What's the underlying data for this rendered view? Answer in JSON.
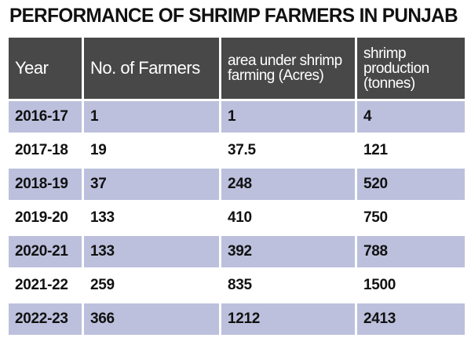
{
  "chart_data": {
    "type": "table",
    "title": "PERFORMANCE OF SHRIMP FARMERS IN PUNJAB",
    "columns": [
      "Year",
      "No. of Farmers",
      "area under shrimp farming (Acres)",
      "shrimp production (tonnes)"
    ],
    "rows": [
      [
        "2016-17",
        "1",
        "1",
        "4"
      ],
      [
        "2017-18",
        "19",
        "37.5",
        "121"
      ],
      [
        "2018-19",
        "37",
        "248",
        "520"
      ],
      [
        "2019-20",
        "133",
        "410",
        "750"
      ],
      [
        "2020-21",
        "133",
        "392",
        "788"
      ],
      [
        "2021-22",
        "259",
        "835",
        "1500"
      ],
      [
        "2022-23",
        "366",
        "1212",
        "2413"
      ]
    ]
  },
  "colors": {
    "header_bg": "#484848",
    "row_shade": "#bcc0dd"
  }
}
